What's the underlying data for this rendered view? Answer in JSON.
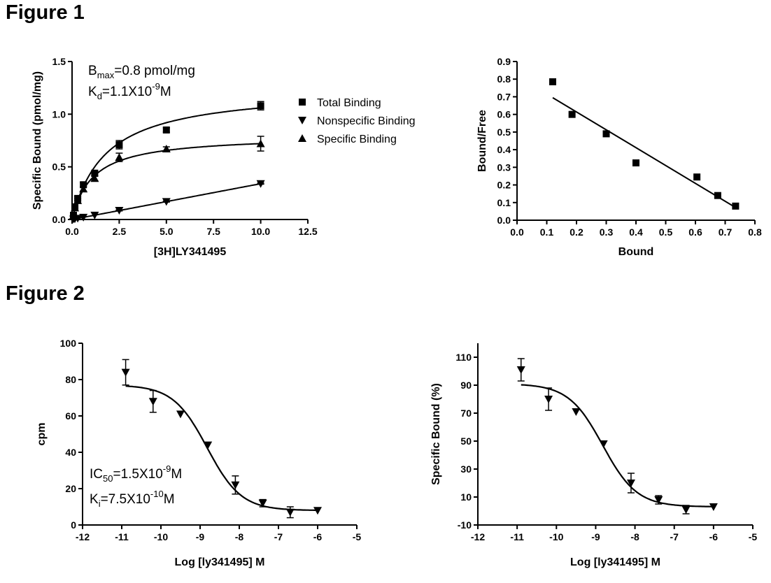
{
  "figures": [
    {
      "heading": "Figure 1"
    },
    {
      "heading": "Figure 2"
    }
  ],
  "chart_data": [
    {
      "id": "saturation",
      "type": "scatter",
      "xlabel": "[3H]LY341495",
      "ylabel": "Specific Bound (pmol/mg)",
      "xlim": [
        0,
        12.5
      ],
      "ylim": [
        0,
        1.5
      ],
      "xticks": [
        "0.0",
        "2.5",
        "5.0",
        "7.5",
        "10.0",
        "12.5"
      ],
      "yticks": [
        "0.0",
        "0.5",
        "1.0",
        "1.5"
      ],
      "annotations": [
        {
          "main": "B",
          "sub": "max",
          "rest": "=0.8 pmol/mg"
        },
        {
          "main": "K",
          "sub": "d",
          "rest": "=1.1X10",
          "sup": "-9",
          "tail": "M"
        }
      ],
      "legend_position": "right",
      "series": [
        {
          "name": "Total Binding",
          "marker": "square",
          "x": [
            0.075,
            0.15,
            0.3,
            0.6,
            1.2,
            2.5,
            5.0,
            10.0
          ],
          "y": [
            0.04,
            0.12,
            0.2,
            0.33,
            0.44,
            0.71,
            0.85,
            1.08
          ],
          "err": [
            0.01,
            0.01,
            0.02,
            0.02,
            0.02,
            0.04,
            0.02,
            0.04
          ]
        },
        {
          "name": "Nonspecific Binding",
          "marker": "triangle-down",
          "x": [
            0.075,
            0.15,
            0.3,
            0.6,
            1.2,
            2.5,
            5.0,
            10.0
          ],
          "y": [
            0.003,
            0.006,
            0.011,
            0.021,
            0.041,
            0.086,
            0.17,
            0.34
          ],
          "err": [
            0,
            0,
            0,
            0,
            0,
            0.005,
            0.005,
            0.005
          ]
        },
        {
          "name": "Specific Binding",
          "marker": "triangle-up",
          "x": [
            0.075,
            0.15,
            0.3,
            0.6,
            1.2,
            2.5,
            5.0,
            10.0
          ],
          "y": [
            0.04,
            0.11,
            0.18,
            0.29,
            0.39,
            0.59,
            0.67,
            0.72
          ],
          "err": [
            0.01,
            0.01,
            0.02,
            0.02,
            0.02,
            0.04,
            0.02,
            0.07
          ]
        }
      ],
      "fits": [
        {
          "series": "Total Binding",
          "bmax": 1.25,
          "kd": 1.8,
          "ns": 0
        },
        {
          "series": "Nonspecific Binding",
          "slope": 0.034
        },
        {
          "series": "Specific Binding",
          "bmax": 0.8,
          "kd": 1.1
        }
      ]
    },
    {
      "id": "scatchard",
      "type": "scatter",
      "xlabel": "Bound",
      "ylabel": "Bound/Free",
      "xlim": [
        0,
        0.8
      ],
      "ylim": [
        0,
        0.9
      ],
      "xticks": [
        "0.0",
        "0.1",
        "0.2",
        "0.3",
        "0.4",
        "0.5",
        "0.6",
        "0.7",
        "0.8"
      ],
      "yticks": [
        "0.0",
        "0.1",
        "0.2",
        "0.3",
        "0.4",
        "0.5",
        "0.6",
        "0.7",
        "0.8",
        "0.9"
      ],
      "series": [
        {
          "marker": "square",
          "x": [
            0.12,
            0.185,
            0.3,
            0.4,
            0.605,
            0.675,
            0.735
          ],
          "y": [
            0.785,
            0.6,
            0.49,
            0.325,
            0.245,
            0.14,
            0.08
          ]
        }
      ],
      "fit_line": {
        "x": [
          0.12,
          0.735
        ],
        "y": [
          0.695,
          0.072
        ]
      }
    },
    {
      "id": "competition-cpm",
      "type": "scatter",
      "xlabel": "Log [ly341495] M",
      "ylabel": "cpm",
      "xlim": [
        -12,
        -5
      ],
      "ylim": [
        0,
        100
      ],
      "xticks": [
        "-12",
        "-11",
        "-10",
        "-9",
        "-8",
        "-7",
        "-6",
        "-5"
      ],
      "yticks": [
        "0",
        "20",
        "40",
        "60",
        "80",
        "100"
      ],
      "annotations": [
        {
          "main": "IC",
          "sub": "50",
          "rest": "=1.5X10",
          "sup": "-9",
          "tail": "M"
        },
        {
          "main": "K",
          "sub": "i",
          "rest": "=7.5X10",
          "sup": "-10",
          "tail": "M"
        }
      ],
      "series": [
        {
          "marker": "triangle-down",
          "x": [
            -10.9,
            -10.2,
            -9.5,
            -8.8,
            -8.1,
            -7.4,
            -6.7,
            -6.0
          ],
          "y": [
            84,
            68,
            61,
            44,
            22,
            12,
            7,
            8
          ],
          "err": [
            7,
            6,
            0,
            0,
            5,
            2,
            3,
            0
          ]
        }
      ],
      "fit": {
        "bottom": 8,
        "top": 77,
        "logec50": -8.82,
        "hill": 1
      }
    },
    {
      "id": "competition-percent",
      "type": "scatter",
      "xlabel": "Log [ly341495] M",
      "ylabel": "Specific Bound (%)",
      "xlim": [
        -12,
        -5
      ],
      "ylim": [
        -10,
        120
      ],
      "xticks": [
        "-12",
        "-11",
        "-10",
        "-9",
        "-8",
        "-7",
        "-6",
        "-5"
      ],
      "yticks": [
        "-10",
        "10",
        "30",
        "50",
        "70",
        "90",
        "110"
      ],
      "series": [
        {
          "marker": "triangle-down",
          "x": [
            -10.9,
            -10.2,
            -9.5,
            -8.8,
            -8.1,
            -7.4,
            -6.7,
            -6.0
          ],
          "y": [
            101,
            80,
            71,
            48,
            20,
            8,
            1,
            3
          ],
          "err": [
            8,
            8,
            0,
            0,
            7,
            3,
            3,
            0
          ]
        }
      ],
      "fit": {
        "bottom": 3,
        "top": 91,
        "logec50": -8.82,
        "hill": 1
      }
    }
  ]
}
